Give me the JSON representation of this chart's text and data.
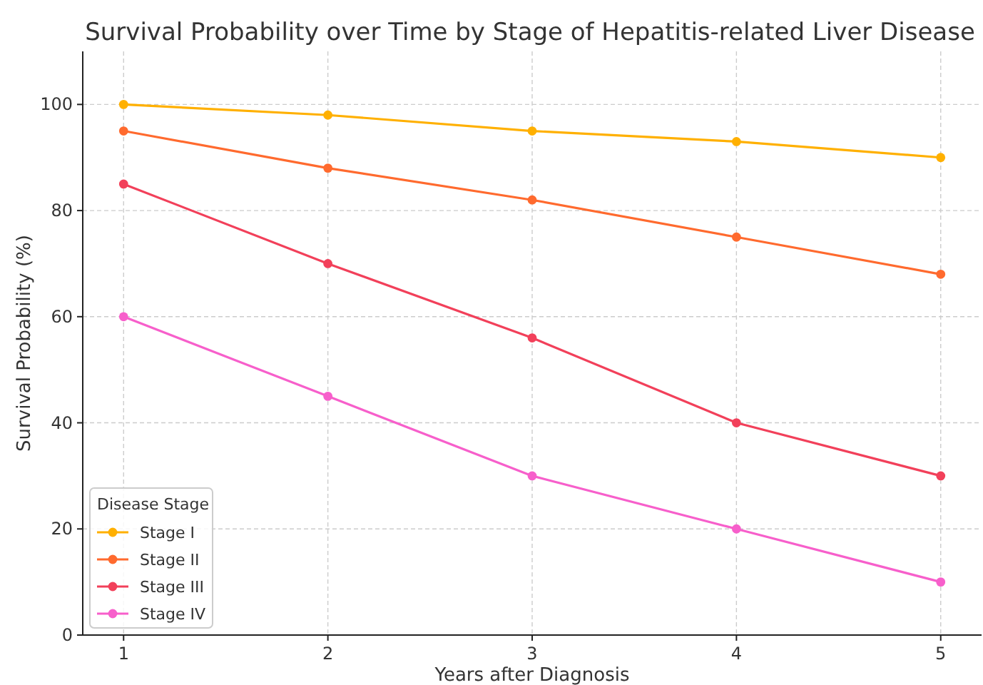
{
  "chart_data": {
    "type": "line",
    "title": "Survival Probability over Time by Stage of Hepatitis-related Liver Disease",
    "xlabel": "Years after Diagnosis",
    "ylabel": "Survival Probability (%)",
    "legend_title": "Disease Stage",
    "x": [
      1,
      2,
      3,
      4,
      5
    ],
    "series": [
      {
        "name": "Stage I",
        "color": "#ffb000",
        "values": [
          100,
          98,
          95,
          93,
          90
        ]
      },
      {
        "name": "Stage II",
        "color": "#ff6a2e",
        "values": [
          95,
          88,
          82,
          75,
          68
        ]
      },
      {
        "name": "Stage III",
        "color": "#f2405a",
        "values": [
          85,
          70,
          56,
          40,
          30
        ]
      },
      {
        "name": "Stage IV",
        "color": "#f75fcb",
        "values": [
          60,
          45,
          30,
          20,
          10
        ]
      }
    ],
    "xlim": [
      0.8,
      5.2
    ],
    "ylim": [
      0,
      110
    ],
    "xticks": [
      1,
      2,
      3,
      4,
      5
    ],
    "yticks": [
      0,
      20,
      40,
      60,
      80,
      100
    ],
    "grid": true,
    "legend": "bottom left",
    "marker": "circle",
    "line_style": "solid"
  }
}
